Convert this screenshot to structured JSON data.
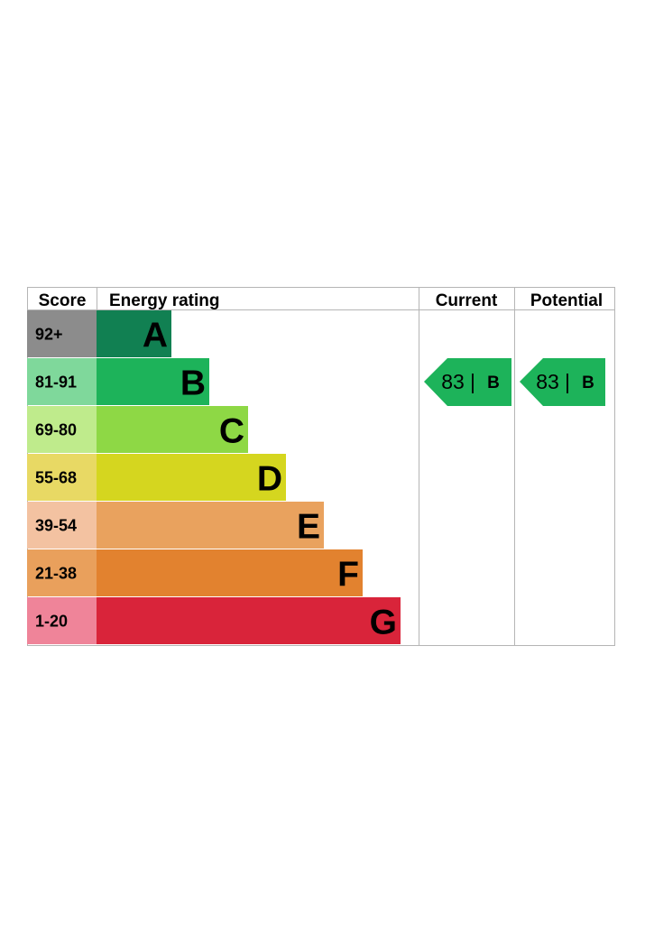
{
  "headers": {
    "score": "Score",
    "energy_rating": "Energy rating",
    "current": "Current",
    "potential": "Potential"
  },
  "chart_data": {
    "type": "bar",
    "bands": [
      {
        "letter": "A",
        "score": "92+",
        "band_color": "#118052",
        "score_color": "#8c8c8c"
      },
      {
        "letter": "B",
        "score": "81-91",
        "band_color": "#1db35a",
        "score_color": "#7fd89b"
      },
      {
        "letter": "C",
        "score": "69-80",
        "band_color": "#8ed845",
        "score_color": "#bfeb8c"
      },
      {
        "letter": "D",
        "score": "55-68",
        "band_color": "#d5d61f",
        "score_color": "#e8d964"
      },
      {
        "letter": "E",
        "score": "39-54",
        "band_color": "#e9a25e",
        "score_color": "#f3c2a1"
      },
      {
        "letter": "F",
        "score": "21-38",
        "band_color": "#e2822f",
        "score_color": "#e9a05c"
      },
      {
        "letter": "G",
        "score": "1-20",
        "band_color": "#d9243a",
        "score_color": "#ef8499"
      }
    ],
    "current": {
      "value": "83",
      "separator": "|",
      "letter": "B",
      "color": "#1db35a"
    },
    "potential": {
      "value": "83",
      "separator": "|",
      "letter": "B",
      "color": "#1db35a"
    }
  }
}
